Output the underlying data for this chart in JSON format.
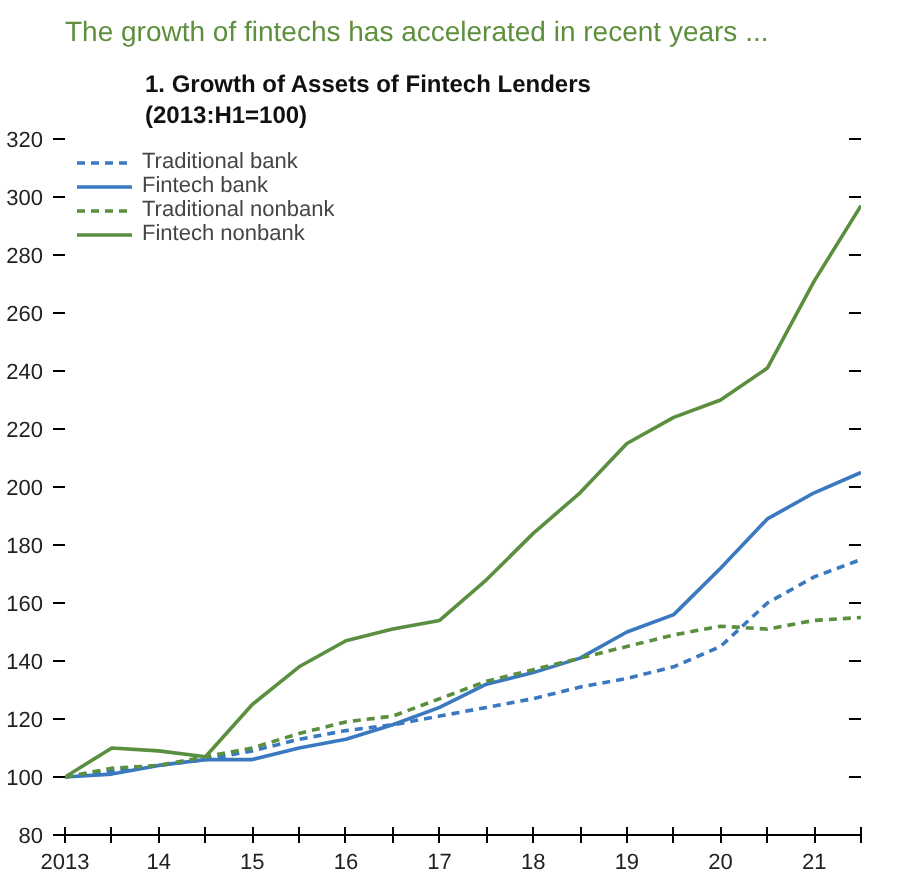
{
  "chart_data": {
    "type": "line",
    "title": "The growth of fintechs has accelerated in recent years ...",
    "subtitle": "1. Growth of Assets of Fintech Lenders\n(2013:H1=100)",
    "x": [
      2013,
      2013.5,
      2014,
      2014.5,
      2015,
      2015.5,
      2016,
      2016.5,
      2017,
      2017.5,
      2018,
      2018.5,
      2019,
      2019.5,
      2020,
      2020.5,
      2021,
      2021.5
    ],
    "series": [
      {
        "name": "Traditional bank",
        "color": "#3a78c0",
        "line_style": "dashed",
        "values": [
          100,
          102,
          104,
          106,
          109,
          113,
          116,
          118,
          121,
          124,
          127,
          131,
          134,
          138,
          145,
          160,
          169,
          175
        ]
      },
      {
        "name": "Fintech bank",
        "color": "#3a78c0",
        "line_style": "solid",
        "values": [
          100,
          101,
          104,
          106,
          106,
          110,
          113,
          118,
          124,
          132,
          136,
          141,
          150,
          156,
          172,
          189,
          198,
          205
        ]
      },
      {
        "name": "Traditional nonbank",
        "color": "#5a8f3f",
        "line_style": "dashed",
        "values": [
          100,
          103,
          104,
          107,
          110,
          115,
          119,
          121,
          127,
          133,
          137,
          141,
          145,
          149,
          152,
          151,
          154,
          155
        ]
      },
      {
        "name": "Fintech nonbank",
        "color": "#5a8f3f",
        "line_style": "solid",
        "values": [
          100,
          110,
          109,
          107,
          125,
          138,
          147,
          151,
          154,
          168,
          184,
          198,
          215,
          224,
          230,
          241,
          271,
          297
        ]
      }
    ],
    "xlim": [
      2013,
      2021.5
    ],
    "xticks": [
      {
        "value": 2013,
        "label": "2013"
      },
      {
        "value": 2013.5,
        "label": null
      },
      {
        "value": 2014,
        "label": "14"
      },
      {
        "value": 2014.5,
        "label": null
      },
      {
        "value": 2015,
        "label": "15"
      },
      {
        "value": 2015.5,
        "label": null
      },
      {
        "value": 2016,
        "label": "16"
      },
      {
        "value": 2016.5,
        "label": null
      },
      {
        "value": 2017,
        "label": "17"
      },
      {
        "value": 2017.5,
        "label": null
      },
      {
        "value": 2018,
        "label": "18"
      },
      {
        "value": 2018.5,
        "label": null
      },
      {
        "value": 2019,
        "label": "19"
      },
      {
        "value": 2019.5,
        "label": null
      },
      {
        "value": 2020,
        "label": "20"
      },
      {
        "value": 2020.5,
        "label": null
      },
      {
        "value": 2021,
        "label": "21"
      },
      {
        "value": 2021.5,
        "label": null
      }
    ],
    "ylim": [
      80,
      320
    ],
    "yticks": [
      80,
      100,
      120,
      140,
      160,
      180,
      200,
      220,
      240,
      260,
      280,
      300,
      320
    ],
    "grid": false,
    "legend": "top left"
  }
}
